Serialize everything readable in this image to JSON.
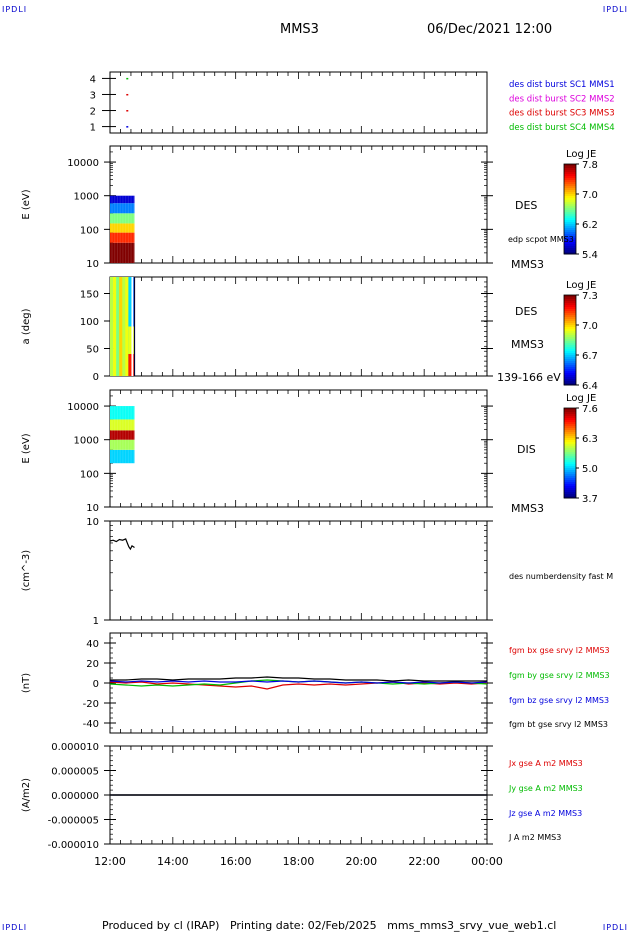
{
  "header": {
    "corner_tl": "IPDLI",
    "corner_tr": "IPDLI",
    "corner_bl": "IPDLI",
    "corner_br": "IPDLI",
    "spacecraft": "MMS3",
    "datetime": "06/Dec/2021 12:00"
  },
  "footer": {
    "text": "Produced by cl (IRAP)   Printing date: 02/Feb/2025   mms_mms3_srvy_vue_web1.cl"
  },
  "colors": {
    "blue": "#0000dd",
    "magenta": "#dd00dd",
    "red": "#dd0000",
    "green": "#00bb00",
    "black": "#000000"
  },
  "chart_data": [
    {
      "type": "scatter",
      "panel": "burst",
      "yticks": [
        "4",
        "3",
        "2",
        "1"
      ],
      "ylim": [
        0.6,
        4.4
      ],
      "legend": [
        {
          "label": "des dist burst SC1 MMS1",
          "color": "#0000dd"
        },
        {
          "label": "des dist burst SC2 MMS2",
          "color": "#dd00dd"
        },
        {
          "label": "des dist burst SC3 MMS3",
          "color": "#dd0000"
        },
        {
          "label": "des dist burst SC4 MMS4",
          "color": "#00bb00"
        }
      ],
      "points": [
        {
          "t": 12.55,
          "y": 4,
          "color": "#00bb00"
        },
        {
          "t": 12.55,
          "y": 3,
          "color": "#dd0000"
        },
        {
          "t": 12.55,
          "y": 2,
          "color": "#dd0000"
        },
        {
          "t": 12.55,
          "y": 1,
          "color": "#0000dd"
        }
      ]
    },
    {
      "type": "heatmap",
      "panel": "des_energy",
      "ylabel": "E (eV)",
      "scale": "log",
      "ylim": [
        10,
        30000
      ],
      "yticks": [
        "10000",
        "1000",
        "100",
        "10"
      ],
      "tick_values": [
        10000,
        1000,
        100,
        10
      ],
      "label_right": "DES",
      "label_right2": "edp scpot MMS3",
      "bottom_right": "MMS3",
      "colorbar": {
        "title": "Log JE",
        "ticks": [
          "7.8",
          "7.0",
          "6.2",
          "5.4"
        ],
        "range": [
          5.4,
          7.8
        ]
      },
      "time_range": [
        12.0,
        12.78
      ],
      "cells": [
        {
          "y0": 10,
          "y1": 40,
          "value": 7.8
        },
        {
          "y0": 40,
          "y1": 80,
          "value": 7.4
        },
        {
          "y0": 80,
          "y1": 150,
          "value": 7.0
        },
        {
          "y0": 150,
          "y1": 300,
          "value": 6.6
        },
        {
          "y0": 300,
          "y1": 600,
          "value": 6.0
        },
        {
          "y0": 600,
          "y1": 1000,
          "value": 5.6
        }
      ]
    },
    {
      "type": "heatmap",
      "panel": "des_pitch",
      "ylabel": "a (deg)",
      "ylim": [
        0,
        180
      ],
      "yticks": [
        "150",
        "100",
        "50",
        "0"
      ],
      "tick_values": [
        150,
        100,
        50,
        0
      ],
      "label_right": "DES",
      "label_right2": "MMS3",
      "bottom_right": "139-166 eV",
      "colorbar": {
        "title": "Log JE",
        "ticks": [
          "7.3",
          "7.0",
          "6.7",
          "6.4"
        ],
        "range": [
          6.4,
          7.3
        ]
      },
      "time_range": [
        12.0,
        12.78
      ]
    },
    {
      "type": "heatmap",
      "panel": "dis_energy",
      "ylabel": "E (eV)",
      "scale": "log",
      "ylim": [
        10,
        30000
      ],
      "yticks": [
        "10000",
        "1000",
        "100",
        "10"
      ],
      "tick_values": [
        10000,
        1000,
        100,
        10
      ],
      "label_right": "DIS",
      "bottom_right": "MMS3",
      "colorbar": {
        "title": "Log JE",
        "ticks": [
          "7.6",
          "6.3",
          "5.0",
          "3.7"
        ],
        "range": [
          3.7,
          7.6
        ]
      },
      "time_range": [
        12.0,
        12.78
      ],
      "cells": [
        {
          "y0": 200,
          "y1": 500,
          "value": 5.0
        },
        {
          "y0": 500,
          "y1": 1000,
          "value": 5.8
        },
        {
          "y0": 1000,
          "y1": 1900,
          "value": 7.4
        },
        {
          "y0": 1900,
          "y1": 4000,
          "value": 6.0
        },
        {
          "y0": 4000,
          "y1": 10000,
          "value": 5.2
        }
      ]
    },
    {
      "type": "line",
      "panel": "density",
      "ylabel": "(cm^-3)",
      "scale": "log",
      "ylim": [
        1,
        10
      ],
      "yticks": [
        "10",
        "1"
      ],
      "tick_values": [
        10,
        1
      ],
      "series": [
        {
          "name": "des numberdensity fast M",
          "color": "#000000",
          "x": [
            12.0,
            12.1,
            12.2,
            12.3,
            12.4,
            12.5,
            12.55,
            12.6,
            12.65,
            12.7,
            12.78
          ],
          "y": [
            6.3,
            6.4,
            6.2,
            6.5,
            6.4,
            6.6,
            6.0,
            5.5,
            5.2,
            5.6,
            5.4
          ]
        }
      ]
    },
    {
      "type": "line",
      "panel": "magnetic_field",
      "ylabel": "(nT)",
      "ylim": [
        -50,
        50
      ],
      "yticks": [
        "40",
        "20",
        "0",
        "-20",
        "-40"
      ],
      "tick_values": [
        40,
        20,
        0,
        -20,
        -40
      ],
      "x": [
        12,
        12.5,
        13,
        13.5,
        14,
        14.5,
        15,
        15.5,
        16,
        16.5,
        17,
        17.5,
        18,
        18.5,
        19,
        19.5,
        20,
        20.5,
        21,
        21.5,
        22,
        22.5,
        23,
        23.5,
        24
      ],
      "series": [
        {
          "name": "fgm bx gse srvy l2 MMS3",
          "color": "#dd0000",
          "y": [
            1,
            0,
            1,
            -1,
            0,
            -1,
            -2,
            -3,
            -4,
            -3,
            -6,
            -2,
            -1,
            -2,
            -1,
            -2,
            -1,
            0,
            1,
            -1,
            0,
            -1,
            0,
            -1,
            0
          ]
        },
        {
          "name": "fgm by gse srvy l2 MMS3",
          "color": "#00bb00",
          "y": [
            -1,
            -2,
            -3,
            -2,
            -3,
            -2,
            -1,
            -2,
            0,
            2,
            3,
            2,
            1,
            2,
            1,
            0,
            1,
            0,
            -1,
            0,
            -1,
            0,
            1,
            0,
            -1
          ]
        },
        {
          "name": "fgm bz gse srvy l2 MMS3",
          "color": "#0000dd",
          "y": [
            2,
            1,
            2,
            1,
            2,
            1,
            2,
            1,
            1,
            2,
            1,
            2,
            1,
            2,
            1,
            0,
            1,
            0,
            1,
            0,
            1,
            0,
            1,
            0,
            1
          ]
        },
        {
          "name": "fgm bt gse srvy l2 MMS3",
          "color": "#000000",
          "y": [
            3,
            3,
            4,
            4,
            3,
            4,
            4,
            4,
            5,
            5,
            6,
            5,
            5,
            4,
            4,
            3,
            3,
            3,
            2,
            3,
            2,
            2,
            2,
            2,
            2
          ]
        }
      ]
    },
    {
      "type": "line",
      "panel": "current_density",
      "ylabel": "(A/m2)",
      "ylim": [
        -1e-05,
        1e-05
      ],
      "yticks": [
        "0.000010",
        "0.000005",
        "0.000000",
        "-0.000005",
        "-0.000010"
      ],
      "tick_values": [
        1e-05,
        5e-06,
        0,
        -5e-06,
        -1e-05
      ],
      "xticks": [
        "12:00",
        "14:00",
        "16:00",
        "18:00",
        "20:00",
        "22:00",
        "00:00"
      ],
      "xtick_values": [
        12,
        14,
        16,
        18,
        20,
        22,
        24
      ],
      "xlim": [
        12,
        24
      ],
      "series": [
        {
          "name": "Jx gse A m2 MMS3",
          "color": "#dd0000",
          "x": [
            12,
            24
          ],
          "y": [
            0,
            0
          ]
        },
        {
          "name": "Jy gse A m2 MMS3",
          "color": "#00bb00",
          "x": [
            12,
            24
          ],
          "y": [
            0,
            0
          ]
        },
        {
          "name": "Jz gse A m2 MMS3",
          "color": "#0000dd",
          "x": [
            12,
            24
          ],
          "y": [
            0,
            0
          ]
        },
        {
          "name": "J A m2 MMS3",
          "color": "#000000",
          "x": [
            12,
            24
          ],
          "y": [
            0,
            0
          ]
        }
      ]
    }
  ]
}
